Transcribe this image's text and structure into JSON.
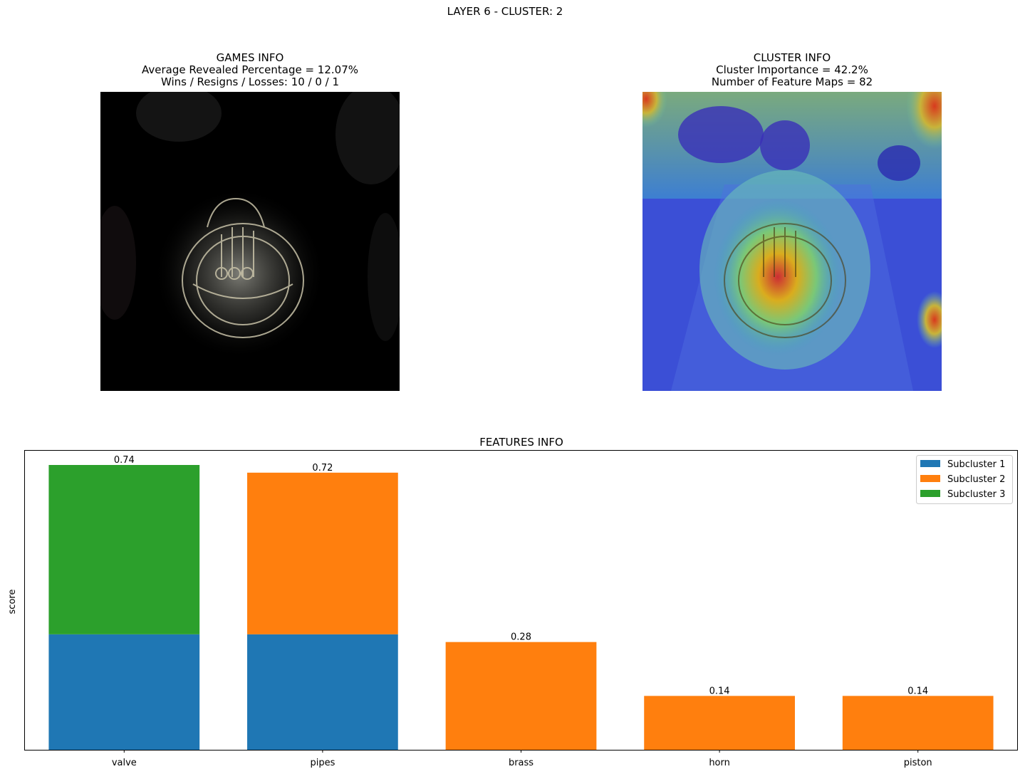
{
  "figure": {
    "suptitle": "LAYER 6 - CLUSTER: 2"
  },
  "games_panel": {
    "title": "GAMES INFO",
    "line1": "Average Revealed Percentage = 12.07%",
    "line2": "Wins / Resigns / Losses: 10 / 0 / 1"
  },
  "cluster_panel": {
    "title": "CLUSTER INFO",
    "line1": "Cluster Importance = 42.2%",
    "line2": "Number of Feature Maps = 82"
  },
  "colors": {
    "subcluster_1": "#1f77b4",
    "subcluster_2": "#ff7f0e",
    "subcluster_3": "#2ca02c"
  },
  "chart_data": {
    "type": "bar",
    "stacked": true,
    "title": "FEATURES INFO",
    "xlabel": "",
    "ylabel": "score",
    "ylim": [
      0,
      0.777
    ],
    "yticks_visible": false,
    "grid": false,
    "legend_position": "top-right",
    "categories": [
      "valve",
      "pipes",
      "brass",
      "horn",
      "piston"
    ],
    "series": [
      {
        "name": "Subcluster 1",
        "color": "#1f77b4",
        "values": [
          0.3,
          0.3,
          0,
          0,
          0
        ]
      },
      {
        "name": "Subcluster 2",
        "color": "#ff7f0e",
        "values": [
          0,
          0.42,
          0.28,
          0.14,
          0.14
        ]
      },
      {
        "name": "Subcluster 3",
        "color": "#2ca02c",
        "values": [
          0.44,
          0,
          0,
          0,
          0
        ]
      }
    ],
    "totals": [
      0.74,
      0.72,
      0.28,
      0.14,
      0.14
    ],
    "total_labels": [
      "0.74",
      "0.72",
      "0.28",
      "0.14",
      "0.14"
    ]
  }
}
